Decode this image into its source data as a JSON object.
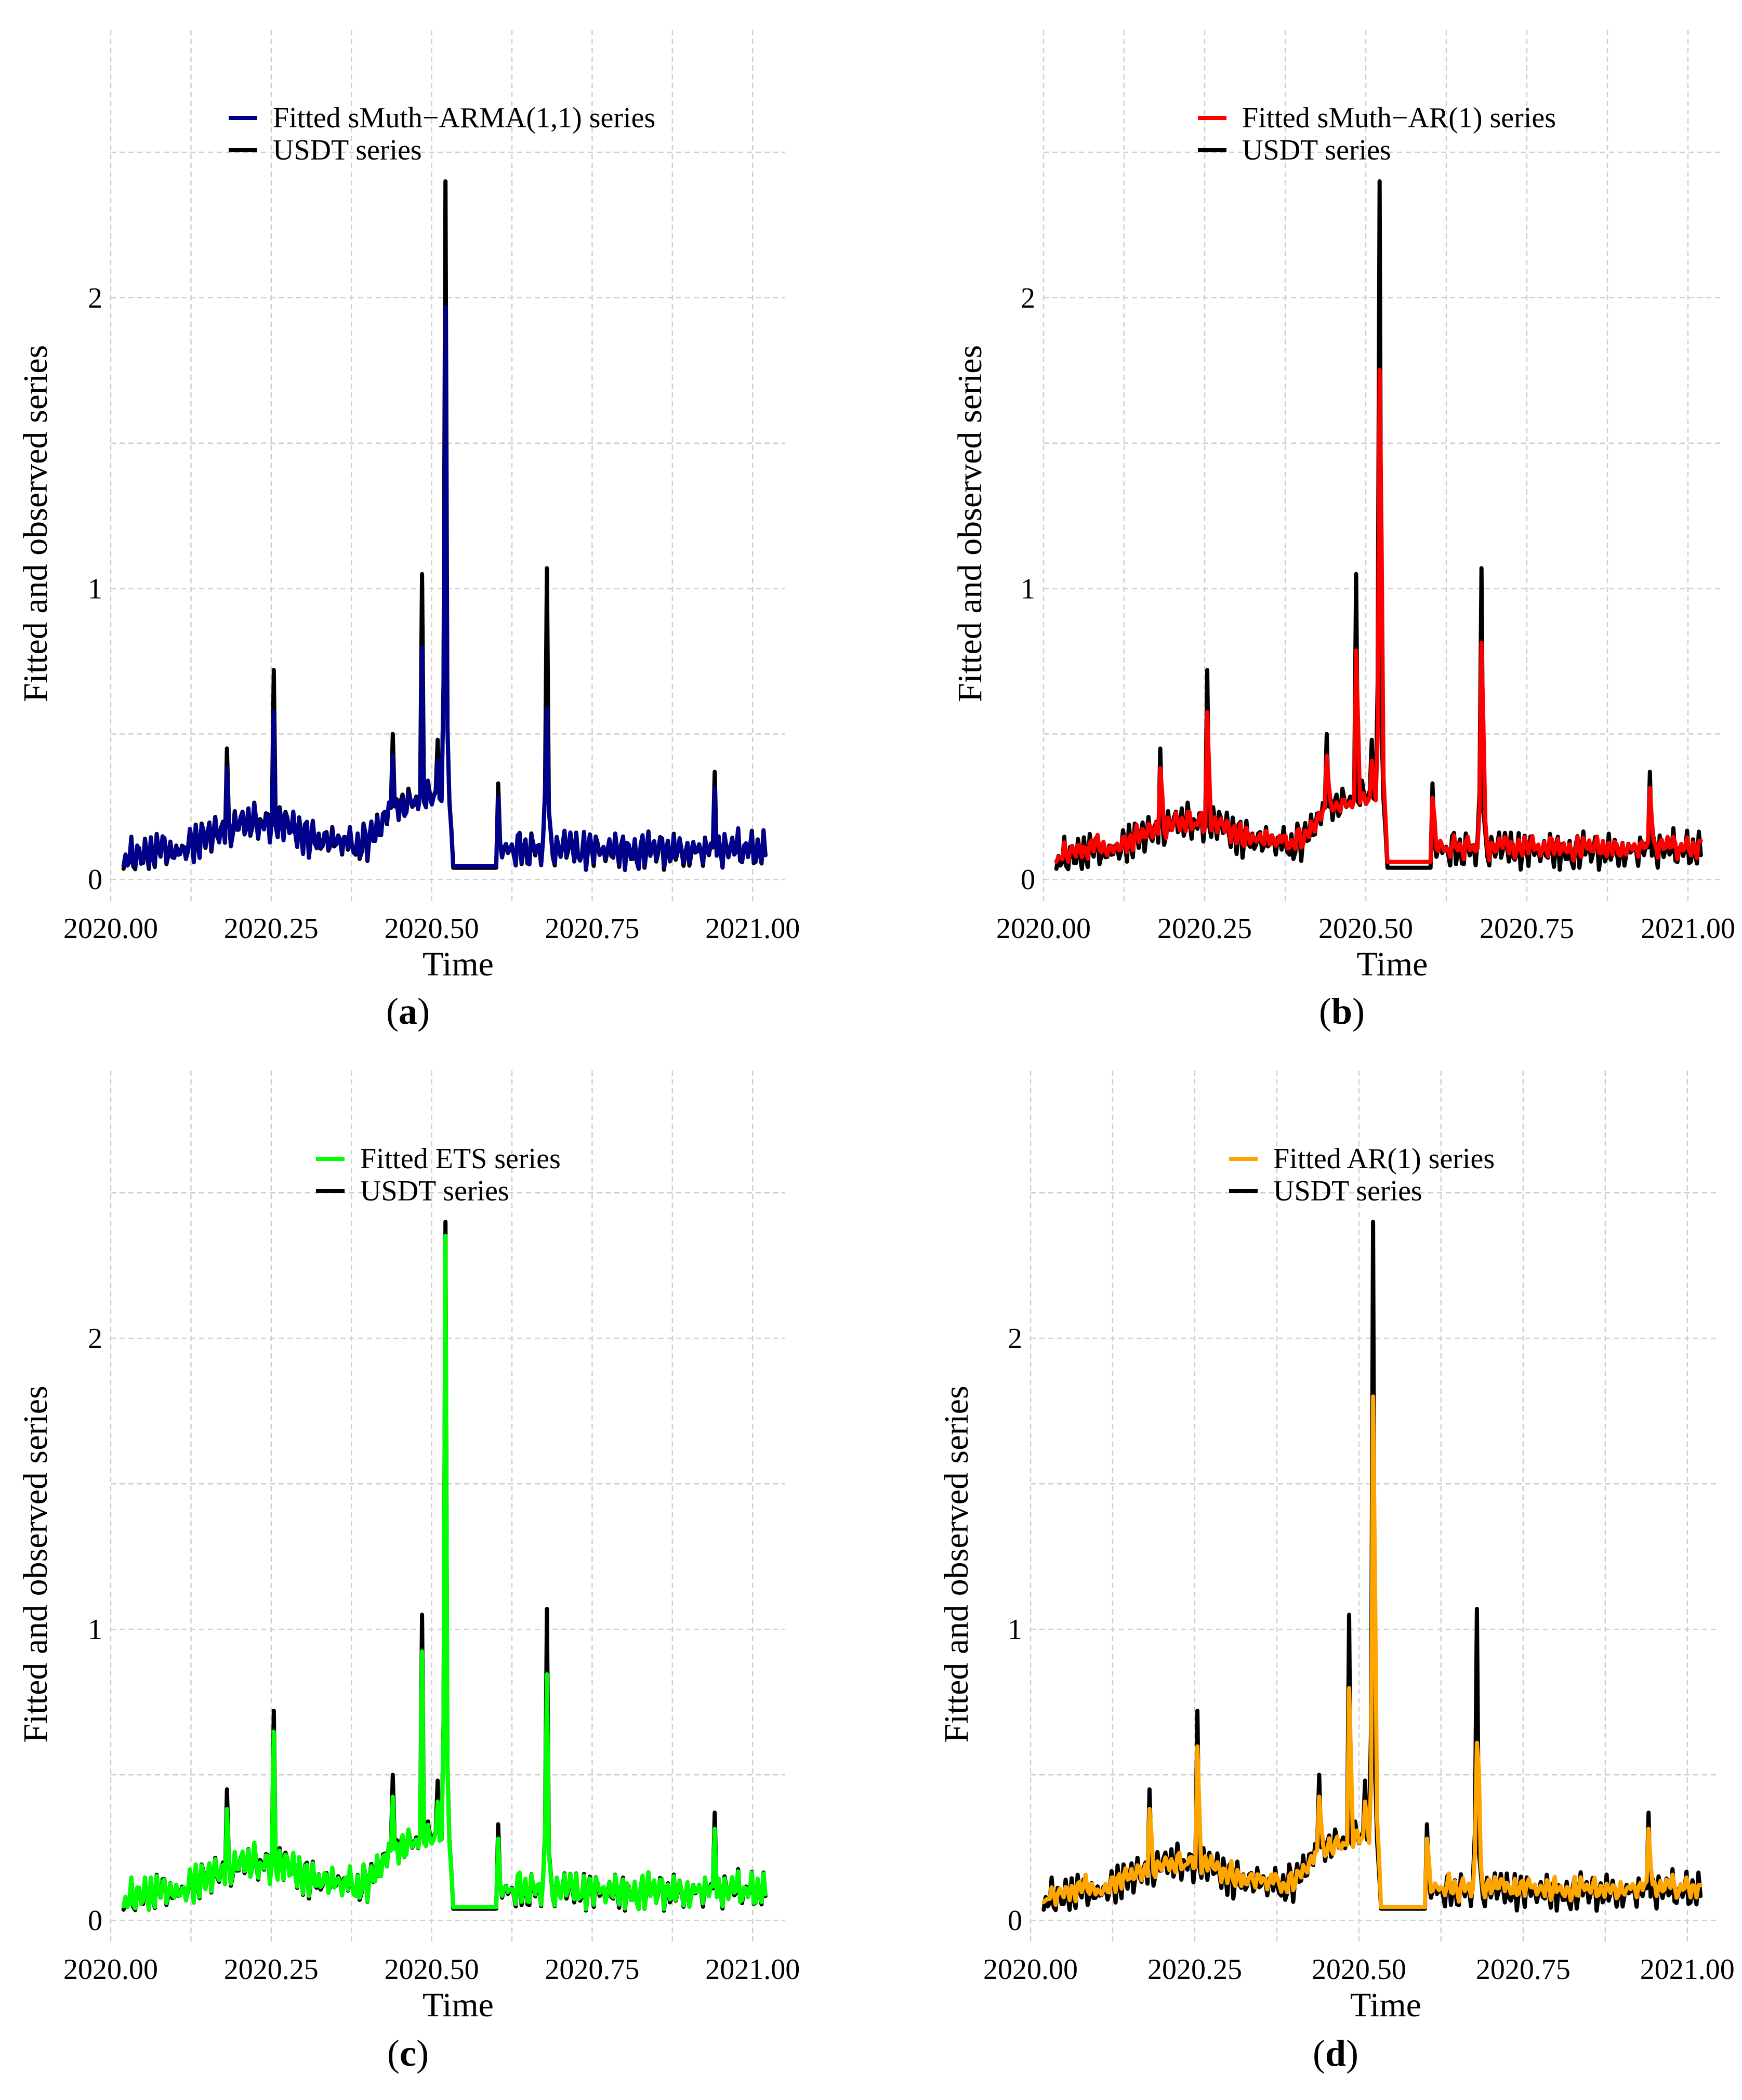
{
  "chart_data": [
    {
      "type": "line",
      "panel": "a",
      "caption_label": "a",
      "xlabel": "Time",
      "ylabel": "Fitted and observed series",
      "x_ticks": [
        "2020.00",
        "2020.25",
        "2020.50",
        "2020.75",
        "2021.00"
      ],
      "y_ticks": [
        "0",
        "1",
        "2"
      ],
      "xlim": [
        2020.0,
        2021.05
      ],
      "ylim": [
        -0.08,
        2.92
      ],
      "legend_position": "top-center",
      "series": [
        {
          "name": "Fitted sMuth−ARMA(1,1) series",
          "color": "#00008B",
          "role": "fitted",
          "fit": "tight",
          "spike_scale": [
            0.8,
            0.76,
            0.82,
            0.55
          ]
        },
        {
          "name": "USDT series",
          "color": "#000000",
          "role": "observed"
        }
      ]
    },
    {
      "type": "line",
      "panel": "b",
      "caption_label": "b",
      "xlabel": "Time",
      "ylabel": "Fitted and observed series",
      "x_ticks": [
        "2020.00",
        "2020.25",
        "2020.50",
        "2020.75",
        "2021.00"
      ],
      "y_ticks": [
        "0",
        "1",
        "2"
      ],
      "xlim": [
        2020.0,
        2021.05
      ],
      "ylim": [
        -0.08,
        2.92
      ],
      "legend_position": "top-center",
      "series": [
        {
          "name": "Fitted sMuth−AR(1) series",
          "color": "#FF0000",
          "role": "fitted",
          "fit": "lagged",
          "spike_scale": [
            0.8,
            0.75,
            0.73,
            0.76
          ]
        },
        {
          "name": "USDT series",
          "color": "#000000",
          "role": "observed"
        }
      ]
    },
    {
      "type": "line",
      "panel": "c",
      "caption_label": "c",
      "xlabel": "Time",
      "ylabel": "Fitted and observed series",
      "x_ticks": [
        "2020.00",
        "2020.25",
        "2020.50",
        "2020.75",
        "2021.00"
      ],
      "y_ticks": [
        "0",
        "1",
        "2"
      ],
      "xlim": [
        2020.0,
        2021.05
      ],
      "ylim": [
        -0.08,
        2.92
      ],
      "legend_position": "top-center",
      "series": [
        {
          "name": "Fitted ETS series",
          "color": "#00FF00",
          "role": "fitted",
          "fit": "tight",
          "spike_scale": [
            0.9,
            0.88,
            0.98,
            0.79
          ]
        },
        {
          "name": "USDT series",
          "color": "#000000",
          "role": "observed"
        }
      ]
    },
    {
      "type": "line",
      "panel": "d",
      "caption_label": "d",
      "xlabel": "Time",
      "ylabel": "Fitted and observed series",
      "x_ticks": [
        "2020.00",
        "2020.25",
        "2020.50",
        "2020.75",
        "2021.00"
      ],
      "y_ticks": [
        "0",
        "1",
        "2"
      ],
      "xlim": [
        2020.0,
        2021.05
      ],
      "ylim": [
        -0.08,
        2.92
      ],
      "legend_position": "top-center",
      "series": [
        {
          "name": "Fitted AR(1) series",
          "color": "#FFA500",
          "role": "fitted",
          "fit": "lagged",
          "spike_scale": [
            0.83,
            0.76,
            0.75,
            0.57
          ]
        },
        {
          "name": "USDT series",
          "color": "#000000",
          "role": "observed"
        }
      ]
    }
  ],
  "observed_series": {
    "name": "USDT series",
    "start": 2020.02,
    "end": 2021.02,
    "points": 330,
    "flat_segment": {
      "x0": 2020.531,
      "x1": 2020.602,
      "level": 0.04
    },
    "spikes": [
      {
        "x": 2020.18,
        "y": 0.45
      },
      {
        "x": 2020.255,
        "y": 0.72
      },
      {
        "x": 2020.44,
        "y": 0.5
      },
      {
        "x": 2020.485,
        "y": 1.05
      },
      {
        "x": 2020.508,
        "y": 0.48
      },
      {
        "x": 2020.523,
        "y": 2.4
      },
      {
        "x": 2020.605,
        "y": 0.33
      },
      {
        "x": 2020.68,
        "y": 1.07
      },
      {
        "x": 2020.94,
        "y": 0.37
      }
    ]
  }
}
